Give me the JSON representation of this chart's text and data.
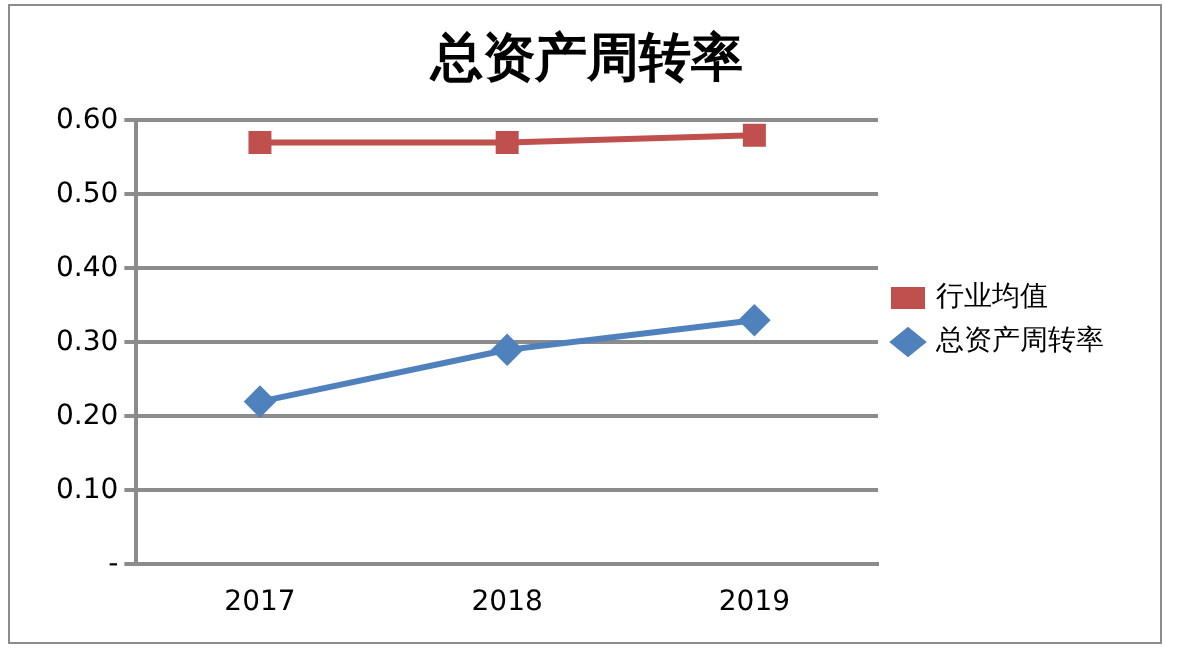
{
  "chart_data": {
    "type": "line",
    "title": "总资产周转率",
    "categories": [
      "2017",
      "2018",
      "2019"
    ],
    "series": [
      {
        "name": "行业均值",
        "color": "#c0504d",
        "marker": "square",
        "values": [
          0.57,
          0.57,
          0.58
        ]
      },
      {
        "name": "总资产周转率",
        "color": "#4f81bd",
        "marker": "diamond",
        "values": [
          0.22,
          0.29,
          0.33
        ]
      }
    ],
    "ylim": [
      0,
      0.6
    ],
    "yticks": [
      {
        "value": 0,
        "label": "-"
      },
      {
        "value": 0.1,
        "label": "0.10"
      },
      {
        "value": 0.2,
        "label": "0.20"
      },
      {
        "value": 0.3,
        "label": "0.30"
      },
      {
        "value": 0.4,
        "label": "0.40"
      },
      {
        "value": 0.5,
        "label": "0.50"
      },
      {
        "value": 0.6,
        "label": "0.60"
      }
    ],
    "grid": "y",
    "legend": "right",
    "line_style": "solid"
  }
}
